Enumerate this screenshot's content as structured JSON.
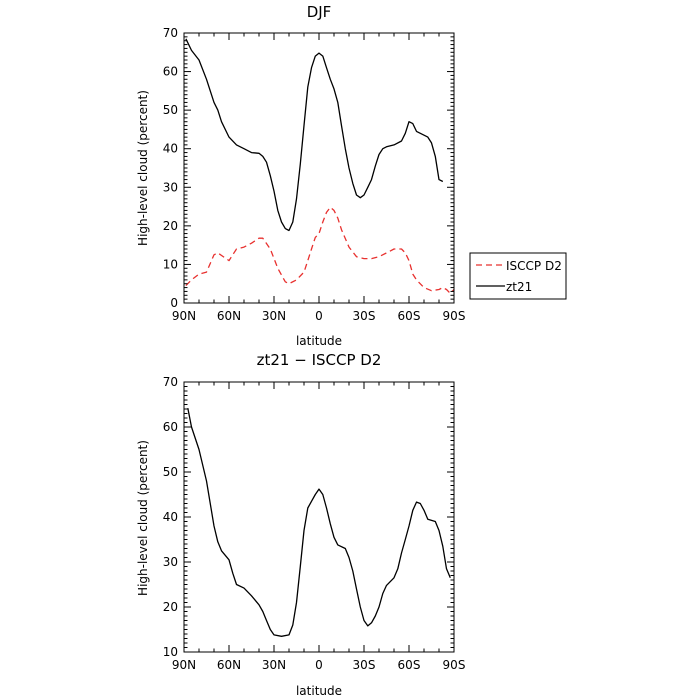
{
  "chart_data": [
    {
      "type": "line",
      "title": "DJF",
      "xlabel": "latitude",
      "ylabel": "High-level cloud (percent)",
      "x_ticks": [
        90,
        60,
        30,
        0,
        -30,
        -60,
        -90
      ],
      "x_tick_labels": [
        "90N",
        "60N",
        "30N",
        "0",
        "30S",
        "60S",
        "90S"
      ],
      "xlim": [
        90,
        -90
      ],
      "ylim": [
        0,
        70
      ],
      "y_ticks": [
        0,
        10,
        20,
        30,
        40,
        50,
        60,
        70
      ],
      "legend": "right",
      "series": [
        {
          "name": "ISCCP D2",
          "color": "#e8312f",
          "dash": "dashed",
          "points": [
            [
              88.75,
              4.5
            ],
            [
              85,
              6
            ],
            [
              80,
              7.5
            ],
            [
              75,
              8
            ],
            [
              70,
              12.5
            ],
            [
              67.5,
              13
            ],
            [
              60,
              11
            ],
            [
              55,
              14
            ],
            [
              50,
              14.5
            ],
            [
              45,
              15.5
            ],
            [
              40,
              16.8
            ],
            [
              37.5,
              16.8
            ],
            [
              32.5,
              14
            ],
            [
              27.5,
              9
            ],
            [
              22.5,
              5.5
            ],
            [
              20,
              5
            ],
            [
              15,
              6
            ],
            [
              10,
              8
            ],
            [
              7.5,
              11
            ],
            [
              5,
              14
            ],
            [
              2.5,
              17
            ],
            [
              0,
              18
            ],
            [
              -2.5,
              21
            ],
            [
              -5,
              23.5
            ],
            [
              -7.5,
              24.8
            ],
            [
              -10,
              24
            ],
            [
              -12.5,
              22
            ],
            [
              -15,
              19
            ],
            [
              -20,
              14.5
            ],
            [
              -25,
              12
            ],
            [
              -30,
              11.5
            ],
            [
              -35,
              11.5
            ],
            [
              -40,
              12
            ],
            [
              -45,
              13
            ],
            [
              -50,
              14
            ],
            [
              -55,
              14
            ],
            [
              -57.5,
              13
            ],
            [
              -60,
              11
            ],
            [
              -62.5,
              7.5
            ],
            [
              -65,
              6
            ],
            [
              -70,
              4
            ],
            [
              -75,
              3.2
            ],
            [
              -80,
              3.5
            ],
            [
              -82.5,
              4
            ],
            [
              -85,
              3.5
            ],
            [
              -87.5,
              2.5
            ],
            [
              -90,
              3.5
            ],
            [
              -92.5,
              5
            ]
          ]
        },
        {
          "name": "zt21",
          "color": "#000000",
          "dash": "solid",
          "points": [
            [
              88.75,
              68.5
            ],
            [
              85,
              65.5
            ],
            [
              80,
              63
            ],
            [
              75,
              58
            ],
            [
              70,
              52
            ],
            [
              67.5,
              50
            ],
            [
              65,
              47
            ],
            [
              60,
              43
            ],
            [
              55,
              41
            ],
            [
              50,
              40
            ],
            [
              45,
              39
            ],
            [
              40,
              38.8
            ],
            [
              37.5,
              38
            ],
            [
              35,
              36.5
            ],
            [
              32.5,
              33
            ],
            [
              30,
              29
            ],
            [
              27.5,
              24
            ],
            [
              25,
              21
            ],
            [
              22.5,
              19.3
            ],
            [
              20,
              18.8
            ],
            [
              17.5,
              21
            ],
            [
              15,
              27
            ],
            [
              12.5,
              36
            ],
            [
              10,
              46
            ],
            [
              7.5,
              56
            ],
            [
              5,
              61
            ],
            [
              2.5,
              64
            ],
            [
              0,
              64.8
            ],
            [
              -2.5,
              64
            ],
            [
              -5,
              61
            ],
            [
              -7.5,
              58
            ],
            [
              -10,
              55.5
            ],
            [
              -12.5,
              52
            ],
            [
              -15,
              46
            ],
            [
              -17.5,
              40
            ],
            [
              -20,
              35
            ],
            [
              -22.5,
              31
            ],
            [
              -25,
              28
            ],
            [
              -27.5,
              27.3
            ],
            [
              -30,
              28
            ],
            [
              -32.5,
              30
            ],
            [
              -35,
              32
            ],
            [
              -37.5,
              35.5
            ],
            [
              -40,
              38.5
            ],
            [
              -42.5,
              40
            ],
            [
              -45,
              40.5
            ],
            [
              -50,
              41
            ],
            [
              -55,
              42
            ],
            [
              -57.5,
              44
            ],
            [
              -60,
              47
            ],
            [
              -62.5,
              46.5
            ],
            [
              -65,
              44.5
            ],
            [
              -67.5,
              44
            ],
            [
              -72.5,
              43
            ],
            [
              -75,
              41.5
            ],
            [
              -77.5,
              38
            ],
            [
              -80,
              32
            ],
            [
              -82.5,
              31.5
            ]
          ]
        }
      ]
    },
    {
      "type": "line",
      "title": "zt21 − ISCCP D2",
      "xlabel": "latitude",
      "ylabel": "High-level cloud (percent)",
      "x_ticks": [
        90,
        60,
        30,
        0,
        -30,
        -60,
        -90
      ],
      "x_tick_labels": [
        "90N",
        "60N",
        "30N",
        "0",
        "30S",
        "60S",
        "90S"
      ],
      "xlim": [
        90,
        -90
      ],
      "ylim": [
        10,
        70
      ],
      "y_ticks": [
        10,
        20,
        30,
        40,
        50,
        60,
        70
      ],
      "series": [
        {
          "color": "#000000",
          "dash": "solid",
          "points": [
            [
              87.5,
              64.2
            ],
            [
              85,
              60
            ],
            [
              80,
              55
            ],
            [
              75,
              48
            ],
            [
              70,
              38
            ],
            [
              67.5,
              34.5
            ],
            [
              65,
              32.5
            ],
            [
              60,
              30.5
            ],
            [
              57.5,
              27.5
            ],
            [
              55,
              25
            ],
            [
              50,
              24.2
            ],
            [
              45,
              22.5
            ],
            [
              40,
              20.5
            ],
            [
              37.5,
              19
            ],
            [
              35,
              17
            ],
            [
              32.5,
              15
            ],
            [
              30,
              13.8
            ],
            [
              25,
              13.5
            ],
            [
              20,
              13.8
            ],
            [
              17.5,
              16
            ],
            [
              15,
              21
            ],
            [
              12.5,
              29
            ],
            [
              10,
              37
            ],
            [
              7.5,
              42
            ],
            [
              5,
              43.5
            ],
            [
              2.5,
              45
            ],
            [
              0,
              46.2
            ],
            [
              -2.5,
              45
            ],
            [
              -5,
              42
            ],
            [
              -7.5,
              38.5
            ],
            [
              -10,
              35.5
            ],
            [
              -12.5,
              33.8
            ],
            [
              -17.5,
              33
            ],
            [
              -20,
              31
            ],
            [
              -22.5,
              28
            ],
            [
              -25,
              24
            ],
            [
              -27.5,
              20
            ],
            [
              -30,
              17
            ],
            [
              -32.5,
              15.8
            ],
            [
              -35,
              16.5
            ],
            [
              -37.5,
              18
            ],
            [
              -40,
              20
            ],
            [
              -42.5,
              23
            ],
            [
              -45,
              24.8
            ],
            [
              -50,
              26.5
            ],
            [
              -52.5,
              28.5
            ],
            [
              -55,
              32
            ],
            [
              -57.5,
              35
            ],
            [
              -60,
              38
            ],
            [
              -62.5,
              41.5
            ],
            [
              -65,
              43.3
            ],
            [
              -67.5,
              43
            ],
            [
              -70,
              41.5
            ],
            [
              -72.5,
              39.5
            ],
            [
              -77.5,
              39
            ],
            [
              -80,
              37
            ],
            [
              -82.5,
              33.5
            ],
            [
              -85,
              28.5
            ],
            [
              -87.5,
              26.5
            ]
          ]
        }
      ]
    }
  ]
}
